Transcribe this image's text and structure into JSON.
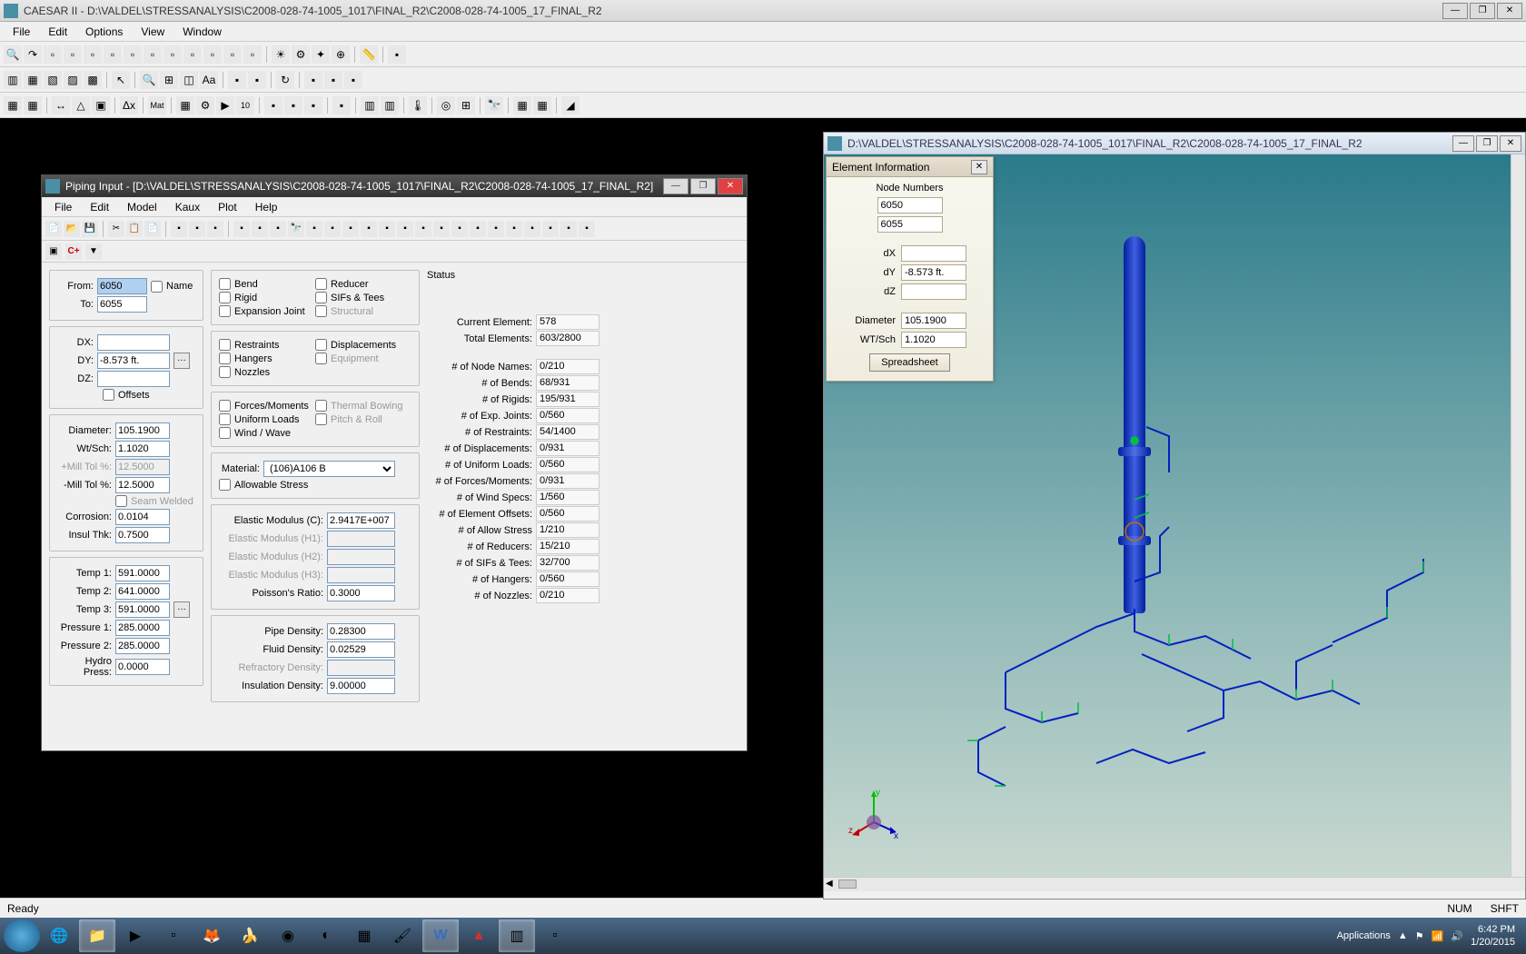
{
  "app": {
    "title": "CAESAR II - D:\\VALDEL\\STRESSANALYSIS\\C2008-028-74-1005_1017\\FINAL_R2\\C2008-028-74-1005_17_FINAL_R2",
    "menus": [
      "File",
      "Edit",
      "Options",
      "View",
      "Window"
    ]
  },
  "statusbar": {
    "ready": "Ready",
    "num": "NUM",
    "shft": "SHFT"
  },
  "piping": {
    "title": "Piping Input - [D:\\VALDEL\\STRESSANALYSIS\\C2008-028-74-1005_1017\\FINAL_R2\\C2008-028-74-1005_17_FINAL_R2]",
    "menus": [
      "File",
      "Edit",
      "Model",
      "Kaux",
      "Plot",
      "Help"
    ],
    "from_lbl": "From:",
    "from": "6050",
    "to_lbl": "To:",
    "to": "6055",
    "name_chk": "Name",
    "dx_lbl": "DX:",
    "dx": "",
    "dy_lbl": "DY:",
    "dy": "-8.573 ft.",
    "dz_lbl": "DZ:",
    "dz": "",
    "offsets_chk": "Offsets",
    "diameter_lbl": "Diameter:",
    "diameter": "105.1900",
    "wtsch_lbl": "Wt/Sch:",
    "wtsch": "1.1020",
    "ptol_lbl": "+Mill Tol %:",
    "ptol": "12.5000",
    "mtol_lbl": "-Mill Tol %:",
    "mtol": "12.5000",
    "seam_chk": "Seam Welded",
    "corrosion_lbl": "Corrosion:",
    "corrosion": "0.0104",
    "insul_lbl": "Insul Thk:",
    "insul": "0.7500",
    "t1_lbl": "Temp 1:",
    "t1": "591.0000",
    "t2_lbl": "Temp 2:",
    "t2": "641.0000",
    "t3_lbl": "Temp 3:",
    "t3": "591.0000",
    "p1_lbl": "Pressure 1:",
    "p1": "285.0000",
    "p2_lbl": "Pressure 2:",
    "p2": "285.0000",
    "hp_lbl": "Hydro Press:",
    "hp": "0.0000",
    "chk_bend": "Bend",
    "chk_reducer": "Reducer",
    "chk_rigid": "Rigid",
    "chk_sifs": "SIFs & Tees",
    "chk_exp": "Expansion Joint",
    "chk_struct": "Structural",
    "chk_restraints": "Restraints",
    "chk_disp": "Displacements",
    "chk_hangers": "Hangers",
    "chk_equip": "Equipment",
    "chk_nozzles": "Nozzles",
    "chk_forces": "Forces/Moments",
    "chk_thermal": "Thermal Bowing",
    "chk_uniform": "Uniform Loads",
    "chk_pitch": "Pitch & Roll",
    "chk_wind": "Wind / Wave",
    "material_lbl": "Material:",
    "material": "(106)A106 B",
    "chk_allowable": "Allowable Stress",
    "em_c_lbl": "Elastic Modulus (C):",
    "em_c": "2.9417E+007",
    "em_h1_lbl": "Elastic Modulus (H1):",
    "em_h1": "",
    "em_h2_lbl": "Elastic Modulus (H2):",
    "em_h2": "",
    "em_h3_lbl": "Elastic Modulus (H3):",
    "em_h3": "",
    "poisson_lbl": "Poisson's Ratio:",
    "poisson": "0.3000",
    "pipe_dens_lbl": "Pipe Density:",
    "pipe_dens": "0.28300",
    "fluid_dens_lbl": "Fluid Density:",
    "fluid_dens": "0.02529",
    "refrac_dens_lbl": "Refractory Density:",
    "refrac_dens": "",
    "insul_dens_lbl": "Insulation Density:",
    "insul_dens": "9.00000",
    "status_title": "Status",
    "status": [
      {
        "l": "Current Element:",
        "v": "578"
      },
      {
        "l": "Total Elements:",
        "v": "603/2800"
      },
      {
        "l": "# of Node Names:",
        "v": "0/210"
      },
      {
        "l": "# of Bends:",
        "v": "68/931"
      },
      {
        "l": "# of Rigids:",
        "v": "195/931"
      },
      {
        "l": "# of Exp. Joints:",
        "v": "0/560"
      },
      {
        "l": "# of Restraints:",
        "v": "54/1400"
      },
      {
        "l": "# of Displacements:",
        "v": "0/931"
      },
      {
        "l": "# of Uniform Loads:",
        "v": "0/560"
      },
      {
        "l": "# of Forces/Moments:",
        "v": "0/931"
      },
      {
        "l": "# of Wind Specs:",
        "v": "1/560"
      },
      {
        "l": "# of Element Offsets:",
        "v": "0/560"
      },
      {
        "l": "# of Allow Stress",
        "v": "1/210"
      },
      {
        "l": "# of Reducers:",
        "v": "15/210"
      },
      {
        "l": "# of SIFs & Tees:",
        "v": "32/700"
      },
      {
        "l": "# of Hangers:",
        "v": "0/560"
      },
      {
        "l": "# of Nozzles:",
        "v": "0/210"
      }
    ]
  },
  "view3d": {
    "title": "D:\\VALDEL\\STRESSANALYSIS\\C2008-028-74-1005_1017\\FINAL_R2\\C2008-028-74-1005_17_FINAL_R2",
    "bg_top": "#2a7a8a",
    "bg_bot": "#c8d8d0",
    "pipe_color": "#0020c0",
    "restraint_color": "#00c040"
  },
  "elem_info": {
    "title": "Element Information",
    "node_lbl": "Node Numbers",
    "node_from": "6050",
    "node_to": "6055",
    "dx_lbl": "dX",
    "dx": "",
    "dy_lbl": "dY",
    "dy": "-8.573 ft.",
    "dz_lbl": "dZ",
    "dz": "",
    "dia_lbl": "Diameter",
    "dia": "105.1900",
    "wt_lbl": "WT/Sch",
    "wt": "1.1020",
    "btn": "Spreadsheet"
  },
  "taskbar": {
    "applications_lbl": "Applications",
    "time": "6:42 PM",
    "date": "1/20/2015"
  }
}
